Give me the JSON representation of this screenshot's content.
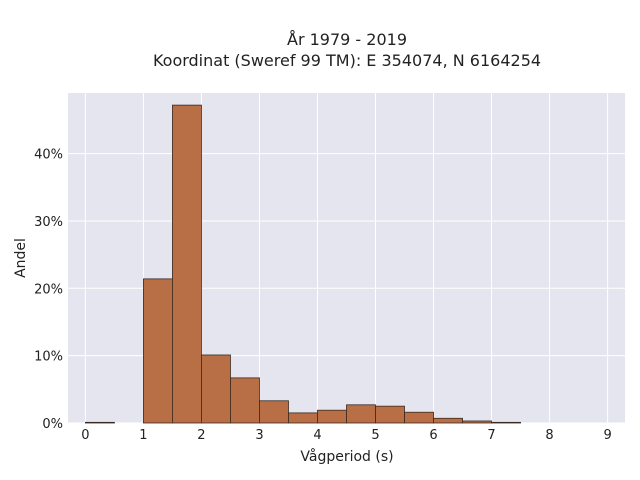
{
  "chart_data": {
    "type": "bar",
    "title": "År 1979 - 2019",
    "subtitle": "Koordinat (Sweref 99 TM): E 354074, N 6164254",
    "xlabel": "Vågperiod (s)",
    "ylabel": "Andel",
    "xlim": [
      -0.3,
      9.3
    ],
    "ylim": [
      0,
      49
    ],
    "xticks": [
      0,
      1,
      2,
      3,
      4,
      5,
      6,
      7,
      8,
      9
    ],
    "yticks": [
      0,
      10,
      20,
      30,
      40
    ],
    "ytick_labels": [
      "0%",
      "10%",
      "20%",
      "30%",
      "40%"
    ],
    "bin_width": 0.5,
    "bins": [
      {
        "start": 0.0,
        "value": 0.1
      },
      {
        "start": 0.5,
        "value": 0.0
      },
      {
        "start": 1.0,
        "value": 21.4
      },
      {
        "start": 1.5,
        "value": 47.2
      },
      {
        "start": 2.0,
        "value": 10.1
      },
      {
        "start": 2.5,
        "value": 6.7
      },
      {
        "start": 3.0,
        "value": 3.3
      },
      {
        "start": 3.5,
        "value": 1.5
      },
      {
        "start": 4.0,
        "value": 1.9
      },
      {
        "start": 4.5,
        "value": 2.7
      },
      {
        "start": 5.0,
        "value": 2.5
      },
      {
        "start": 5.5,
        "value": 1.6
      },
      {
        "start": 6.0,
        "value": 0.7
      },
      {
        "start": 6.5,
        "value": 0.3
      },
      {
        "start": 7.0,
        "value": 0.1
      }
    ],
    "grid": true,
    "colors": {
      "bar_fill": "#b86f45",
      "bar_stroke": "#3a2a20",
      "plot_bg": "#e5e5ef",
      "grid": "#ffffff"
    }
  }
}
